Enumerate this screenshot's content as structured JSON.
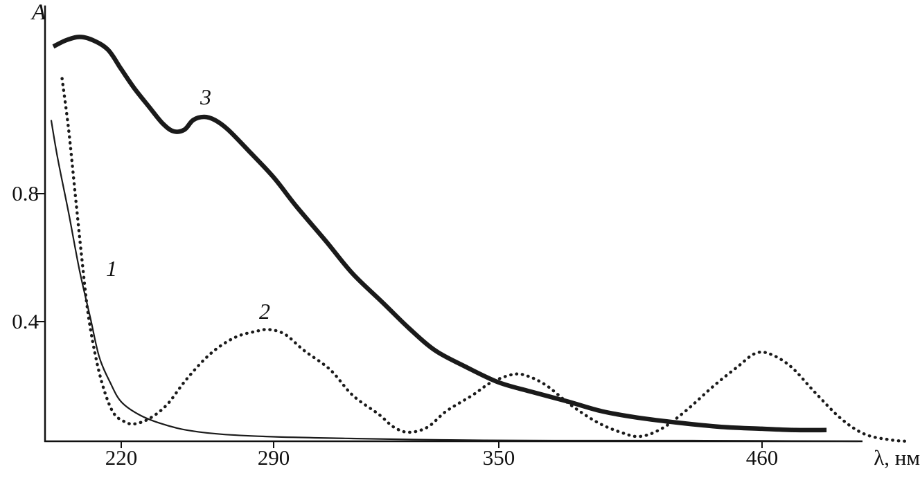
{
  "chart_data": {
    "type": "line",
    "title": "",
    "xlabel": "λ, нм",
    "ylabel": "A",
    "grid": "off",
    "legend": "none",
    "line_color": "#1a1a1a",
    "background": "#ffffff",
    "x_ticks": [
      {
        "label": "220",
        "value": 220,
        "pos": 0.093
      },
      {
        "label": "290",
        "value": 290,
        "pos": 0.28
      },
      {
        "label": "350",
        "value": 350,
        "pos": 0.555
      },
      {
        "label": "460",
        "value": 460,
        "pos": 0.877
      }
    ],
    "y_ticks": [
      {
        "label": "0.4",
        "value": 0.4
      },
      {
        "label": "0.8",
        "value": 0.8
      }
    ],
    "ylim": [
      0,
      1.38
    ],
    "xlim": [
      185,
      522
    ],
    "series": [
      {
        "name": "1",
        "style": "thin-solid",
        "points": [
          [
            188,
            1.03
          ],
          [
            191,
            0.91
          ],
          [
            196,
            0.74
          ],
          [
            201,
            0.56
          ],
          [
            206,
            0.41
          ],
          [
            210,
            0.29
          ],
          [
            215,
            0.21
          ],
          [
            220,
            0.15
          ],
          [
            228,
            0.11
          ],
          [
            238,
            0.082
          ],
          [
            250,
            0.061
          ],
          [
            266,
            0.048
          ],
          [
            290,
            0.04
          ],
          [
            309,
            0.035
          ],
          [
            337,
            0.03
          ],
          [
            373,
            0.028
          ],
          [
            431,
            0.028
          ],
          [
            500,
            0.026
          ]
        ]
      },
      {
        "name": "2",
        "style": "dotted",
        "points": [
          [
            193,
            1.16
          ],
          [
            196,
            1.0
          ],
          [
            199,
            0.8
          ],
          [
            202,
            0.6
          ],
          [
            205,
            0.42
          ],
          [
            209,
            0.27
          ],
          [
            213,
            0.17
          ],
          [
            217,
            0.11
          ],
          [
            222,
            0.086
          ],
          [
            226,
            0.08
          ],
          [
            233,
            0.097
          ],
          [
            241,
            0.14
          ],
          [
            250,
            0.22
          ],
          [
            261,
            0.3
          ],
          [
            272,
            0.35
          ],
          [
            282,
            0.37
          ],
          [
            288,
            0.375
          ],
          [
            293,
            0.36
          ],
          [
            298,
            0.31
          ],
          [
            305,
            0.25
          ],
          [
            311,
            0.17
          ],
          [
            318,
            0.11
          ],
          [
            322,
            0.07
          ],
          [
            326,
            0.054
          ],
          [
            331,
            0.07
          ],
          [
            336,
            0.12
          ],
          [
            343,
            0.17
          ],
          [
            348,
            0.21
          ],
          [
            356,
            0.235
          ],
          [
            362,
            0.23
          ],
          [
            370,
            0.2
          ],
          [
            380,
            0.14
          ],
          [
            391,
            0.086
          ],
          [
            401,
            0.054
          ],
          [
            409,
            0.041
          ],
          [
            418,
            0.065
          ],
          [
            428,
            0.12
          ],
          [
            440,
            0.2
          ],
          [
            450,
            0.26
          ],
          [
            457,
            0.3
          ],
          [
            463,
            0.3
          ],
          [
            472,
            0.26
          ],
          [
            482,
            0.18
          ],
          [
            493,
            0.097
          ],
          [
            503,
            0.048
          ],
          [
            514,
            0.03
          ],
          [
            521,
            0.026
          ]
        ]
      },
      {
        "name": "3",
        "style": "thick-solid",
        "points": [
          [
            189,
            1.26
          ],
          [
            195,
            1.28
          ],
          [
            201,
            1.29
          ],
          [
            207,
            1.28
          ],
          [
            214,
            1.25
          ],
          [
            220,
            1.19
          ],
          [
            226,
            1.13
          ],
          [
            233,
            1.07
          ],
          [
            239,
            1.02
          ],
          [
            244,
            0.995
          ],
          [
            249,
            1.0
          ],
          [
            253,
            1.03
          ],
          [
            258,
            1.04
          ],
          [
            263,
            1.03
          ],
          [
            269,
            1.0
          ],
          [
            279,
            0.93
          ],
          [
            290,
            0.85
          ],
          [
            296,
            0.76
          ],
          [
            304,
            0.65
          ],
          [
            311,
            0.55
          ],
          [
            319,
            0.46
          ],
          [
            326,
            0.38
          ],
          [
            333,
            0.31
          ],
          [
            341,
            0.26
          ],
          [
            350,
            0.21
          ],
          [
            364,
            0.18
          ],
          [
            379,
            0.15
          ],
          [
            393,
            0.12
          ],
          [
            408,
            0.1
          ],
          [
            425,
            0.084
          ],
          [
            443,
            0.071
          ],
          [
            460,
            0.065
          ],
          [
            474,
            0.061
          ],
          [
            487,
            0.061
          ]
        ]
      }
    ]
  }
}
